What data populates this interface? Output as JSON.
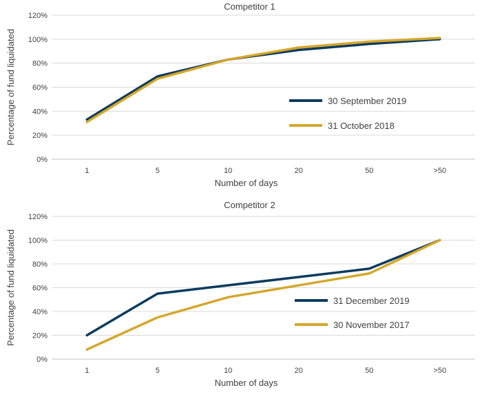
{
  "chart_data": [
    {
      "type": "line",
      "title": "Competitor 1",
      "xlabel": "Number of days",
      "ylabel": "Percentage of fund liquidated",
      "categories": [
        "1",
        "5",
        "10",
        "20",
        "50",
        ">50"
      ],
      "ylim": [
        0,
        120
      ],
      "yticks": [
        "0%",
        "20%",
        "40%",
        "60%",
        "80%",
        "100%",
        "120%"
      ],
      "grid": "horizontal",
      "legend_position": "center-right",
      "series": [
        {
          "name": "30 September 2019",
          "color": "#0d3b5e",
          "values": [
            33,
            69,
            83,
            91,
            96,
            100
          ]
        },
        {
          "name": "31 October 2018",
          "color": "#d4a72c",
          "values": [
            31,
            67,
            83,
            93,
            98,
            101
          ]
        }
      ]
    },
    {
      "type": "line",
      "title": "Competitor 2",
      "xlabel": "Number of days",
      "ylabel": "Percentage of fund liquidated",
      "categories": [
        "1",
        "5",
        "10",
        "20",
        "50",
        ">50"
      ],
      "ylim": [
        0,
        120
      ],
      "yticks": [
        "0%",
        "20%",
        "40%",
        "60%",
        "80%",
        "100%",
        "120%"
      ],
      "grid": "horizontal",
      "legend_position": "center-right",
      "series": [
        {
          "name": "31 December 2019",
          "color": "#0d3b5e",
          "values": [
            20,
            55,
            62,
            69,
            76,
            100
          ]
        },
        {
          "name": "30 November 2017",
          "color": "#d4a72c",
          "values": [
            8,
            35,
            52,
            62,
            72,
            100
          ]
        }
      ]
    }
  ]
}
